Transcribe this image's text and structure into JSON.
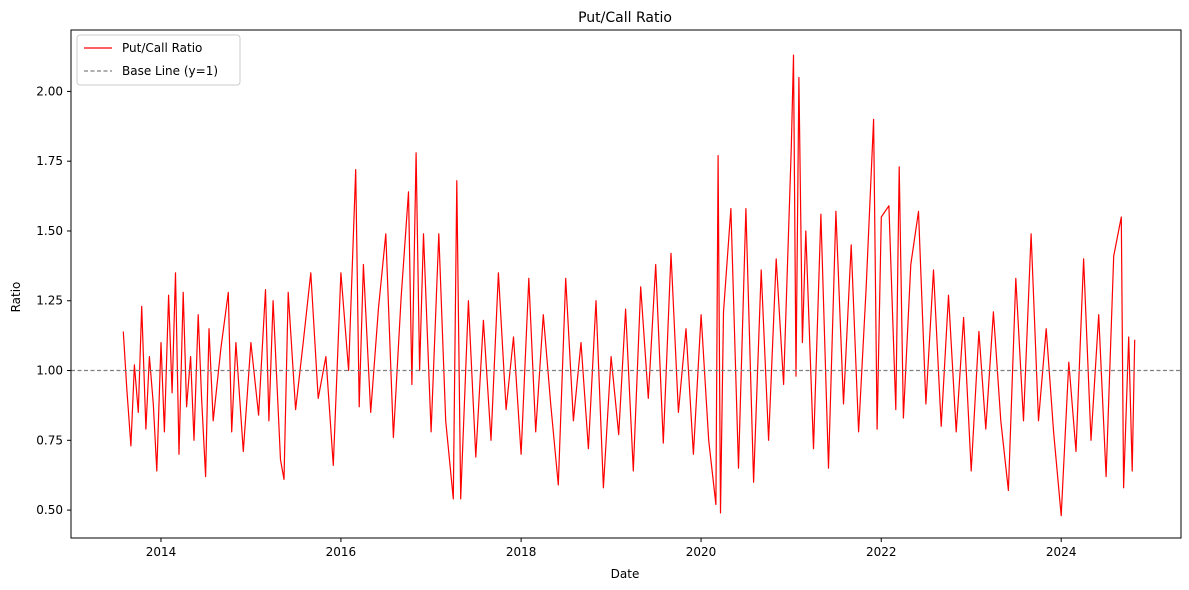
{
  "chart_data": {
    "type": "line",
    "title": "Put/Call Ratio",
    "xlabel": "Date",
    "ylabel": "Ratio",
    "xlim": [
      "2013-01-01",
      "2025-05-01"
    ],
    "ylim": [
      0.4,
      2.22
    ],
    "x_ticks": [
      "2014",
      "2016",
      "2018",
      "2020",
      "2022",
      "2024"
    ],
    "y_ticks": [
      "0.50",
      "0.75",
      "1.00",
      "1.25",
      "1.50",
      "1.75",
      "2.00"
    ],
    "grid": false,
    "legend_position": "top-left",
    "series": [
      {
        "name": "Put/Call Ratio",
        "color": "#ff0000",
        "style": "solid",
        "points": [
          [
            "2013-08-01",
            1.14
          ],
          [
            "2013-08-15",
            0.94
          ],
          [
            "2013-09-01",
            0.73
          ],
          [
            "2013-09-15",
            1.02
          ],
          [
            "2013-10-01",
            0.85
          ],
          [
            "2013-10-15",
            1.23
          ],
          [
            "2013-11-01",
            0.79
          ],
          [
            "2013-11-15",
            1.05
          ],
          [
            "2013-12-01",
            0.88
          ],
          [
            "2013-12-15",
            0.64
          ],
          [
            "2014-01-01",
            1.1
          ],
          [
            "2014-01-15",
            0.78
          ],
          [
            "2014-02-01",
            1.27
          ],
          [
            "2014-02-15",
            0.92
          ],
          [
            "2014-03-01",
            1.35
          ],
          [
            "2014-03-15",
            0.7
          ],
          [
            "2014-04-01",
            1.28
          ],
          [
            "2014-04-15",
            0.87
          ],
          [
            "2014-05-01",
            1.05
          ],
          [
            "2014-05-15",
            0.75
          ],
          [
            "2014-06-01",
            1.2
          ],
          [
            "2014-06-15",
            0.9
          ],
          [
            "2014-07-01",
            0.62
          ],
          [
            "2014-07-15",
            1.15
          ],
          [
            "2014-08-01",
            0.82
          ],
          [
            "2014-09-01",
            1.08
          ],
          [
            "2014-10-01",
            1.28
          ],
          [
            "2014-10-15",
            0.78
          ],
          [
            "2014-11-01",
            1.1
          ],
          [
            "2014-12-01",
            0.71
          ],
          [
            "2015-01-01",
            1.1
          ],
          [
            "2015-02-01",
            0.84
          ],
          [
            "2015-03-01",
            1.29
          ],
          [
            "2015-03-15",
            0.82
          ],
          [
            "2015-04-01",
            1.25
          ],
          [
            "2015-05-01",
            0.68
          ],
          [
            "2015-05-15",
            0.61
          ],
          [
            "2015-06-01",
            1.28
          ],
          [
            "2015-07-01",
            0.86
          ],
          [
            "2015-08-01",
            1.1
          ],
          [
            "2015-09-01",
            1.35
          ],
          [
            "2015-10-01",
            0.9
          ],
          [
            "2015-11-01",
            1.05
          ],
          [
            "2015-12-01",
            0.66
          ],
          [
            "2016-01-01",
            1.35
          ],
          [
            "2016-02-01",
            1.0
          ],
          [
            "2016-03-01",
            1.72
          ],
          [
            "2016-03-15",
            0.87
          ],
          [
            "2016-04-01",
            1.38
          ],
          [
            "2016-05-01",
            0.85
          ],
          [
            "2016-06-01",
            1.22
          ],
          [
            "2016-07-01",
            1.49
          ],
          [
            "2016-08-01",
            0.76
          ],
          [
            "2016-09-01",
            1.26
          ],
          [
            "2016-10-01",
            1.64
          ],
          [
            "2016-10-15",
            0.95
          ],
          [
            "2016-11-01",
            1.78
          ],
          [
            "2016-11-15",
            1.0
          ],
          [
            "2016-12-01",
            1.49
          ],
          [
            "2017-01-01",
            0.78
          ],
          [
            "2017-02-01",
            1.49
          ],
          [
            "2017-03-01",
            0.82
          ],
          [
            "2017-04-01",
            0.54
          ],
          [
            "2017-04-15",
            1.68
          ],
          [
            "2017-05-01",
            0.54
          ],
          [
            "2017-06-01",
            1.25
          ],
          [
            "2017-07-01",
            0.69
          ],
          [
            "2017-08-01",
            1.18
          ],
          [
            "2017-09-01",
            0.75
          ],
          [
            "2017-10-01",
            1.35
          ],
          [
            "2017-11-01",
            0.86
          ],
          [
            "2017-12-01",
            1.12
          ],
          [
            "2018-01-01",
            0.7
          ],
          [
            "2018-02-01",
            1.33
          ],
          [
            "2018-03-01",
            0.78
          ],
          [
            "2018-04-01",
            1.2
          ],
          [
            "2018-05-01",
            0.88
          ],
          [
            "2018-06-01",
            0.59
          ],
          [
            "2018-07-01",
            1.33
          ],
          [
            "2018-08-01",
            0.82
          ],
          [
            "2018-09-01",
            1.1
          ],
          [
            "2018-10-01",
            0.72
          ],
          [
            "2018-11-01",
            1.25
          ],
          [
            "2018-12-01",
            0.58
          ],
          [
            "2019-01-01",
            1.05
          ],
          [
            "2019-02-01",
            0.77
          ],
          [
            "2019-03-01",
            1.22
          ],
          [
            "2019-04-01",
            0.64
          ],
          [
            "2019-05-01",
            1.3
          ],
          [
            "2019-06-01",
            0.9
          ],
          [
            "2019-07-01",
            1.38
          ],
          [
            "2019-08-01",
            0.74
          ],
          [
            "2019-09-01",
            1.42
          ],
          [
            "2019-10-01",
            0.85
          ],
          [
            "2019-11-01",
            1.15
          ],
          [
            "2019-12-01",
            0.7
          ],
          [
            "2020-01-01",
            1.2
          ],
          [
            "2020-02-01",
            0.75
          ],
          [
            "2020-03-01",
            0.52
          ],
          [
            "2020-03-10",
            1.77
          ],
          [
            "2020-03-20",
            0.49
          ],
          [
            "2020-04-01",
            1.21
          ],
          [
            "2020-05-01",
            1.58
          ],
          [
            "2020-06-01",
            0.65
          ],
          [
            "2020-07-01",
            1.58
          ],
          [
            "2020-08-01",
            0.6
          ],
          [
            "2020-09-01",
            1.36
          ],
          [
            "2020-10-01",
            0.75
          ],
          [
            "2020-11-01",
            1.4
          ],
          [
            "2020-12-01",
            0.95
          ],
          [
            "2021-01-01",
            1.8
          ],
          [
            "2021-01-10",
            2.13
          ],
          [
            "2021-01-20",
            0.98
          ],
          [
            "2021-02-01",
            2.05
          ],
          [
            "2021-02-15",
            1.1
          ],
          [
            "2021-03-01",
            1.5
          ],
          [
            "2021-04-01",
            0.72
          ],
          [
            "2021-05-01",
            1.56
          ],
          [
            "2021-06-01",
            0.65
          ],
          [
            "2021-07-01",
            1.57
          ],
          [
            "2021-08-01",
            0.88
          ],
          [
            "2021-09-01",
            1.45
          ],
          [
            "2021-10-01",
            0.78
          ],
          [
            "2021-11-01",
            1.3
          ],
          [
            "2021-12-01",
            1.9
          ],
          [
            "2021-12-15",
            0.79
          ],
          [
            "2022-01-01",
            1.55
          ],
          [
            "2022-02-01",
            1.59
          ],
          [
            "2022-03-01",
            0.86
          ],
          [
            "2022-03-15",
            1.73
          ],
          [
            "2022-04-01",
            0.83
          ],
          [
            "2022-05-01",
            1.38
          ],
          [
            "2022-06-01",
            1.57
          ],
          [
            "2022-07-01",
            0.88
          ],
          [
            "2022-08-01",
            1.36
          ],
          [
            "2022-09-01",
            0.8
          ],
          [
            "2022-10-01",
            1.27
          ],
          [
            "2022-11-01",
            0.78
          ],
          [
            "2022-12-01",
            1.19
          ],
          [
            "2023-01-01",
            0.64
          ],
          [
            "2023-02-01",
            1.14
          ],
          [
            "2023-03-01",
            0.79
          ],
          [
            "2023-04-01",
            1.21
          ],
          [
            "2023-05-01",
            0.82
          ],
          [
            "2023-06-01",
            0.57
          ],
          [
            "2023-07-01",
            1.33
          ],
          [
            "2023-08-01",
            0.82
          ],
          [
            "2023-09-01",
            1.49
          ],
          [
            "2023-10-01",
            0.82
          ],
          [
            "2023-11-01",
            1.15
          ],
          [
            "2023-12-01",
            0.78
          ],
          [
            "2024-01-01",
            0.48
          ],
          [
            "2024-02-01",
            1.03
          ],
          [
            "2024-03-01",
            0.71
          ],
          [
            "2024-04-01",
            1.4
          ],
          [
            "2024-05-01",
            0.75
          ],
          [
            "2024-06-01",
            1.2
          ],
          [
            "2024-07-01",
            0.62
          ],
          [
            "2024-08-01",
            1.41
          ],
          [
            "2024-09-01",
            1.55
          ],
          [
            "2024-09-10",
            0.58
          ],
          [
            "2024-10-01",
            1.12
          ],
          [
            "2024-10-15",
            0.64
          ],
          [
            "2024-10-25",
            1.11
          ]
        ]
      },
      {
        "name": "Base Line (y=1)",
        "color": "#808080",
        "style": "dashed",
        "y": 1.0
      }
    ]
  }
}
